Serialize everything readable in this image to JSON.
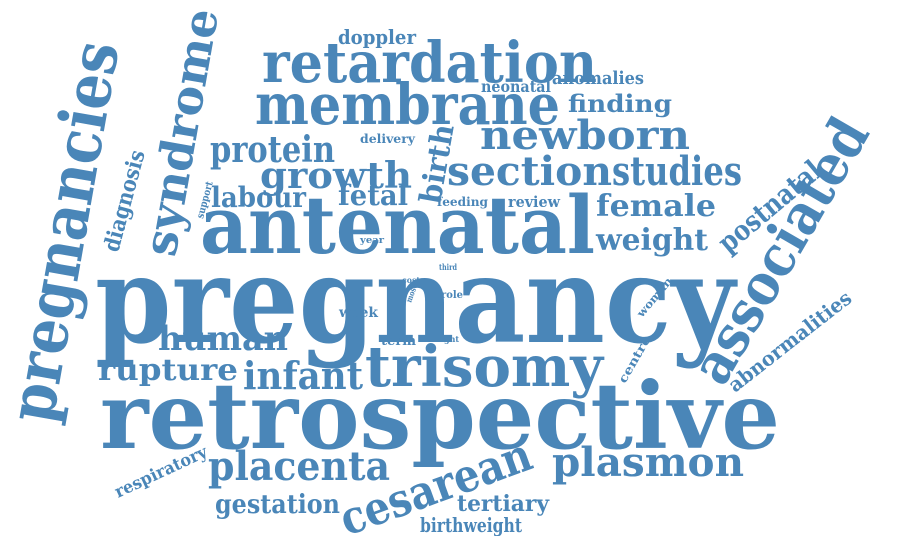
{
  "color": "#4a86b8",
  "words": [
    {
      "id": "pregnancy",
      "text": "pregnancy"
    },
    {
      "id": "retrospective",
      "text": "retrospective"
    },
    {
      "id": "antenatal",
      "text": "antenatal"
    },
    {
      "id": "pregnancies",
      "text": "pregnancies"
    },
    {
      "id": "membrane",
      "text": "membrane"
    },
    {
      "id": "retardation",
      "text": "retardation"
    },
    {
      "id": "associated",
      "text": "associated"
    },
    {
      "id": "trisomy",
      "text": "trisomy"
    },
    {
      "id": "syndrome",
      "text": "syndrome"
    },
    {
      "id": "section",
      "text": "section"
    },
    {
      "id": "studies",
      "text": "studies"
    },
    {
      "id": "newborn",
      "text": "newborn"
    },
    {
      "id": "placenta",
      "text": "placenta"
    },
    {
      "id": "plasmon",
      "text": "plasmon"
    },
    {
      "id": "cesarean",
      "text": "cesarean"
    },
    {
      "id": "protein",
      "text": "protein"
    },
    {
      "id": "growth",
      "text": "growth"
    },
    {
      "id": "infant",
      "text": "infant"
    },
    {
      "id": "human",
      "text": "human"
    },
    {
      "id": "rupture",
      "text": "rupture"
    },
    {
      "id": "weight",
      "text": "weight"
    },
    {
      "id": "female",
      "text": "female"
    },
    {
      "id": "postnatal",
      "text": "postnatal"
    },
    {
      "id": "birth",
      "text": "birth"
    },
    {
      "id": "labour",
      "text": "labour"
    },
    {
      "id": "fetal",
      "text": "fetal"
    },
    {
      "id": "gestation",
      "text": "gestation"
    },
    {
      "id": "tertiary",
      "text": "tertiary"
    },
    {
      "id": "birthweight",
      "text": "birthweight"
    },
    {
      "id": "abnormalities",
      "text": "abnormalities"
    },
    {
      "id": "diagnosis",
      "text": "diagnosis"
    },
    {
      "id": "finding",
      "text": "finding"
    },
    {
      "id": "doppler",
      "text": "doppler"
    },
    {
      "id": "anomalies",
      "text": "anomalies"
    },
    {
      "id": "respiratory",
      "text": "respiratory"
    },
    {
      "id": "neonatal",
      "text": "neonatal"
    },
    {
      "id": "delivery",
      "text": "delivery"
    },
    {
      "id": "centre",
      "text": "centre"
    },
    {
      "id": "woman",
      "text": "woman"
    },
    {
      "id": "week",
      "text": "week"
    },
    {
      "id": "term",
      "text": "term"
    },
    {
      "id": "review",
      "text": "review"
    },
    {
      "id": "feeding",
      "text": "feeding"
    },
    {
      "id": "support",
      "text": "support"
    },
    {
      "id": "year",
      "text": "year"
    },
    {
      "id": "role",
      "text": "role"
    },
    {
      "id": "cost",
      "text": "cost"
    },
    {
      "id": "most",
      "text": "most"
    },
    {
      "id": "third",
      "text": "third"
    },
    {
      "id": "eight",
      "text": "eight"
    }
  ]
}
